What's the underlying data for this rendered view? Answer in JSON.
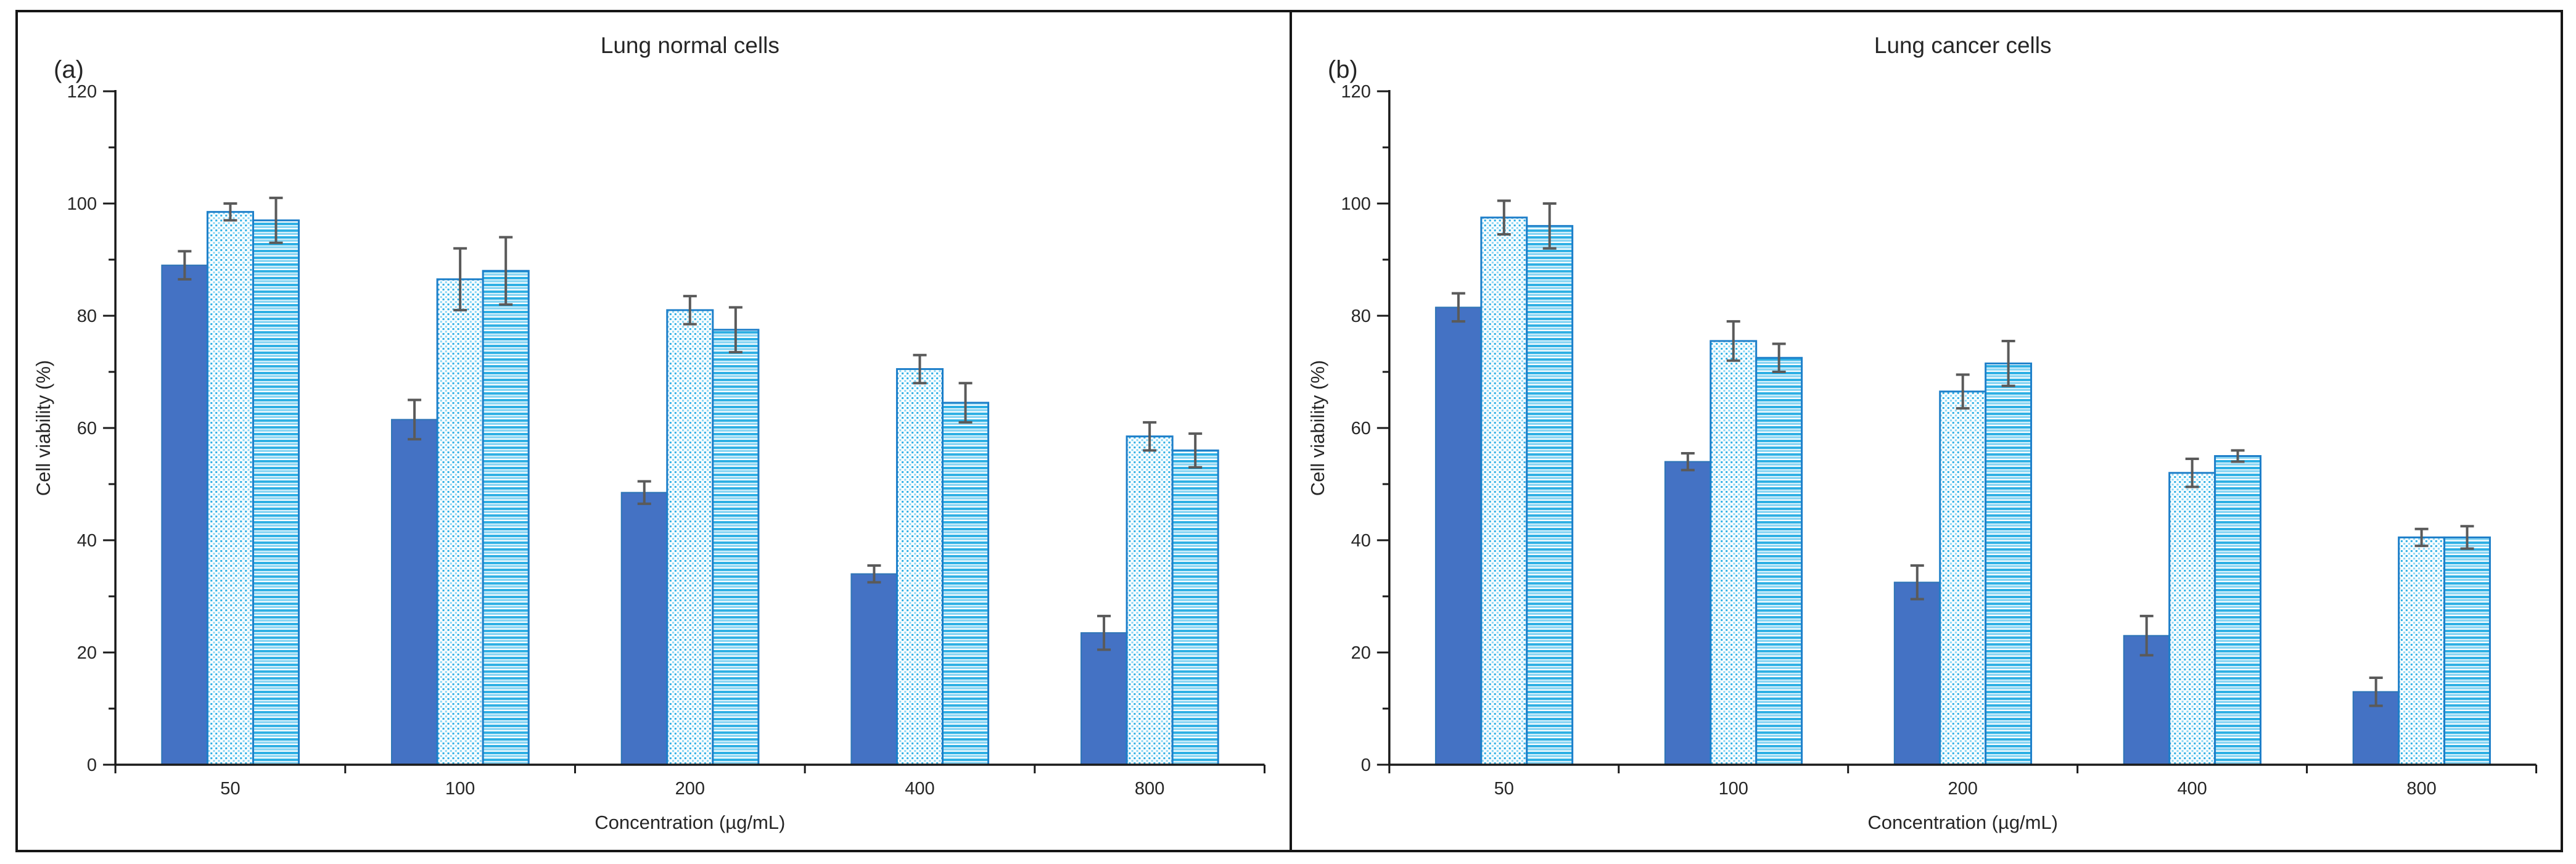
{
  "figure": {
    "background": "#ffffff",
    "frame_color": "#161616",
    "panels": [
      {
        "id": "a",
        "corner_label": "(a)",
        "title": "Lung normal cells"
      },
      {
        "id": "b",
        "corner_label": "(b)",
        "title": "Lung cancer cells"
      }
    ]
  },
  "chart_data": [
    {
      "type": "bar",
      "panel": "a",
      "corner_label": "(a)",
      "title": "Lung normal cells",
      "xlabel": "Concentration (µg/mL)",
      "ylabel": "Cell viability (%)",
      "categories": [
        "50",
        "100",
        "200",
        "400",
        "800"
      ],
      "ylim": [
        0,
        120
      ],
      "ytick_major": 20,
      "ytick_minor": 10,
      "grid": false,
      "legend": "none",
      "series": [
        {
          "name": "solid-blue",
          "style": "solid",
          "values": [
            89,
            61.5,
            48.5,
            34,
            23.5
          ],
          "errors": [
            2.5,
            3.5,
            2,
            1.5,
            3
          ]
        },
        {
          "name": "dotted-pattern",
          "style": "dotted",
          "values": [
            98.5,
            86.5,
            81,
            70.5,
            58.5
          ],
          "errors": [
            1.5,
            5.5,
            2.5,
            2.5,
            2.5
          ]
        },
        {
          "name": "striped-pattern",
          "style": "striped",
          "values": [
            97,
            88,
            77.5,
            64.5,
            56
          ],
          "errors": [
            4,
            6,
            4,
            3.5,
            3
          ]
        }
      ]
    },
    {
      "type": "bar",
      "panel": "b",
      "corner_label": "(b)",
      "title": "Lung cancer cells",
      "xlabel": "Concentration (µg/mL)",
      "ylabel": "Cell viability (%)",
      "categories": [
        "50",
        "100",
        "200",
        "400",
        "800"
      ],
      "ylim": [
        0,
        120
      ],
      "ytick_major": 20,
      "ytick_minor": 10,
      "grid": false,
      "legend": "none",
      "series": [
        {
          "name": "solid-blue",
          "style": "solid",
          "values": [
            81.5,
            54,
            32.5,
            23,
            13
          ],
          "errors": [
            2.5,
            1.5,
            3,
            3.5,
            2.5
          ]
        },
        {
          "name": "dotted-pattern",
          "style": "dotted",
          "values": [
            97.5,
            75.5,
            66.5,
            52,
            40.5
          ],
          "errors": [
            3,
            3.5,
            3,
            2.5,
            1.5
          ]
        },
        {
          "name": "striped-pattern",
          "style": "striped",
          "values": [
            96,
            72.5,
            71.5,
            55,
            40.5
          ],
          "errors": [
            4,
            2.5,
            4,
            1,
            2
          ]
        }
      ]
    }
  ],
  "style": {
    "solid_fill": "#4472C4",
    "solid_border": "#2E75B6",
    "pattern_border": "#1E7FC9",
    "pattern_dot_dark": "#36B2E6",
    "pattern_dot_light": "#8AD6F4",
    "pattern_stripe_dark": "#2FB0E4",
    "pattern_stripe_light": "#8AD6F4",
    "error_bar_color": "#5A5A5A",
    "axis_color": "#1A1A1A",
    "text_color": "#262626"
  }
}
